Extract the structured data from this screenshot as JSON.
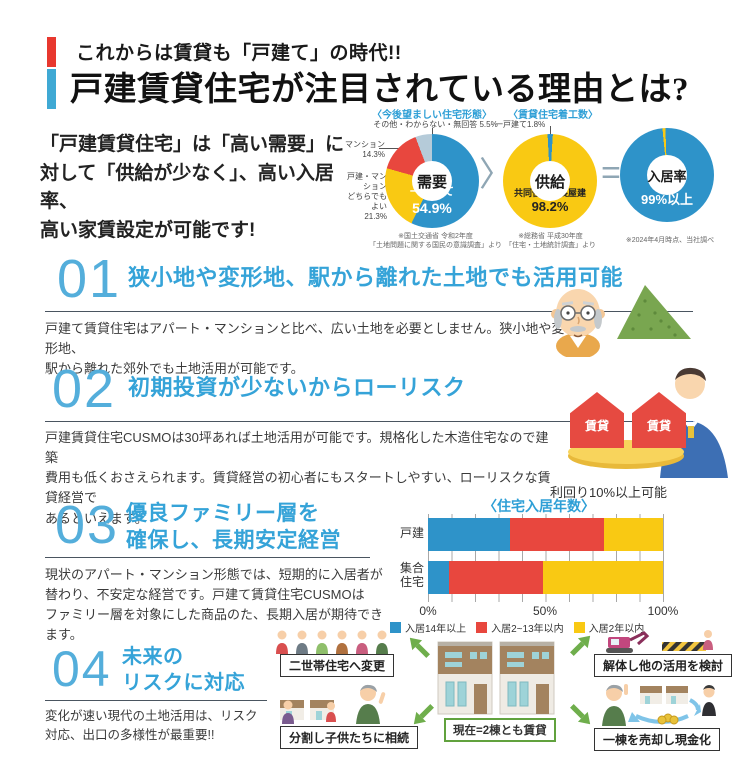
{
  "header": {
    "tagline": "これからは賃貸も「戸建て」の時代!!",
    "title": "戸建賃貸住宅が注目されている理由とは?",
    "accent_red": "#E8382F",
    "accent_blue": "#3FA9D4"
  },
  "lead": {
    "text": "「戸建賃貸住宅」は「高い需要」に\n対して「供給が少なく」、高い入居率、\n高い家賃設定が可能です!"
  },
  "stats": {
    "demand": {
      "label_other": "その他・わからない・無回答 5.5%",
      "label_mansion": "マンション\n14.3%",
      "label_either": "戸建・マンション\nどちらでもよい\n21.3%",
      "inner_label": "一戸建て",
      "inner_value": "54.9%",
      "source": "※国土交通省 令和2年度\n「土地問題に関する国民の意識調査」より"
    },
    "more_than": "〉",
    "supply": {
      "label_detached": "一戸建て1.8%",
      "inner_label": "共同住宅・長屋建",
      "inner_value": "98.2%",
      "source": "※総務省 平成30年度\n「住宅・土地統計調査」より"
    },
    "equals": "=",
    "occupancy": {
      "inner_label": "入居",
      "inner_value": "99%以上",
      "source": "※2024年4月時点、当社調べ"
    }
  },
  "sections": [
    {
      "number": "01",
      "title": "狭小地や変形地、駅から離れた土地でも活用可能",
      "body": "戸建て賃貸住宅はアパート・マンションと比べ、広い土地を必要としません。狭小地や変形地、\n駅から離れた郊外でも土地活用が可能です。"
    },
    {
      "number": "02",
      "title": "初期投資が少ないからローリスク",
      "body": "戸建賃貸住宅CUSMOは30坪あれば土地活用が可能です。規格化した木造住宅なので建築\n費用も低くおさえられます。賃貸経営の初心者にもスタートしやすい、ローリスクな賃貸経営で\nあるといえます。",
      "house_label": "賃貸",
      "caption": "利回り10%以上可能"
    },
    {
      "number": "03",
      "title": "優良ファミリー層を\n確保し、長期安定経営",
      "body": "現状のアパート・マンション形態では、短期的に入居者が\n替わり、不安定な経営です。戸建て賃貸住宅CUSMOは\nファミリー層を対象にした商品のた、長期入居が期待でき\nます。"
    },
    {
      "number": "04",
      "title": "未来の\nリスクに対応",
      "body": "変化が速い現代の土地活用は、リスク\n対応、出口の多様性が最重要!!"
    }
  ],
  "diagram": {
    "center_label": "現在=2棟とも賃貸",
    "top_left": "二世帯住宅へ変更",
    "bottom_left": "分割し子供たちに相続",
    "top_right": "解体し他の活用を検討",
    "bottom_right": "一棟を売却し現金化"
  },
  "chart_data": [
    {
      "type": "pie",
      "title": "〈今後望ましい住宅形態〉",
      "center_label": "需要",
      "slices": [
        {
          "label": "一戸建て",
          "value": 54.9,
          "color": "#2E93C9"
        },
        {
          "label": "戸建・マンションどちらでもよい",
          "value": 21.3,
          "color": "#F9C913"
        },
        {
          "label": "マンション",
          "value": 14.3,
          "color": "#E8473E"
        },
        {
          "label": "その他・わからない・無回答",
          "value": 5.5,
          "color": "#B5CBD9"
        }
      ],
      "source": "※国土交通省 令和2年度「土地問題に関する国民の意識調査」より"
    },
    {
      "type": "pie",
      "title": "〈賃貸住宅着工数〉",
      "center_label": "供給",
      "slices": [
        {
          "label": "一戸建て",
          "value": 1.8,
          "color": "#2E93C9"
        },
        {
          "label": "共同住宅・長屋建",
          "value": 98.2,
          "color": "#F9C913"
        }
      ],
      "source": "※総務省 平成30年度「住宅・土地統計調査」より"
    },
    {
      "type": "pie",
      "title": "入居率",
      "center_label": "入居率",
      "slices": [
        {
          "label": "入居99%以上",
          "value": 99,
          "color": "#2E93C9"
        },
        {
          "label": "",
          "value": 1,
          "color": "#F9C913"
        }
      ],
      "source": "※2024年4月時点、当社調べ"
    },
    {
      "type": "bar",
      "title": "〈住宅入居年数〉",
      "orientation": "horizontal",
      "categories": [
        "戸建",
        "集合住宅"
      ],
      "series": [
        {
          "name": "入居14年以上",
          "color": "#2E93C9",
          "values": [
            35,
            9
          ]
        },
        {
          "name": "入居2~13年以内",
          "color": "#E8473E",
          "values": [
            40,
            40
          ]
        },
        {
          "name": "入居2年以内",
          "color": "#F9C913",
          "values": [
            25,
            51
          ]
        }
      ],
      "xlim": [
        0,
        100
      ],
      "ticks": [
        "0%",
        "50%",
        "100%"
      ]
    }
  ]
}
